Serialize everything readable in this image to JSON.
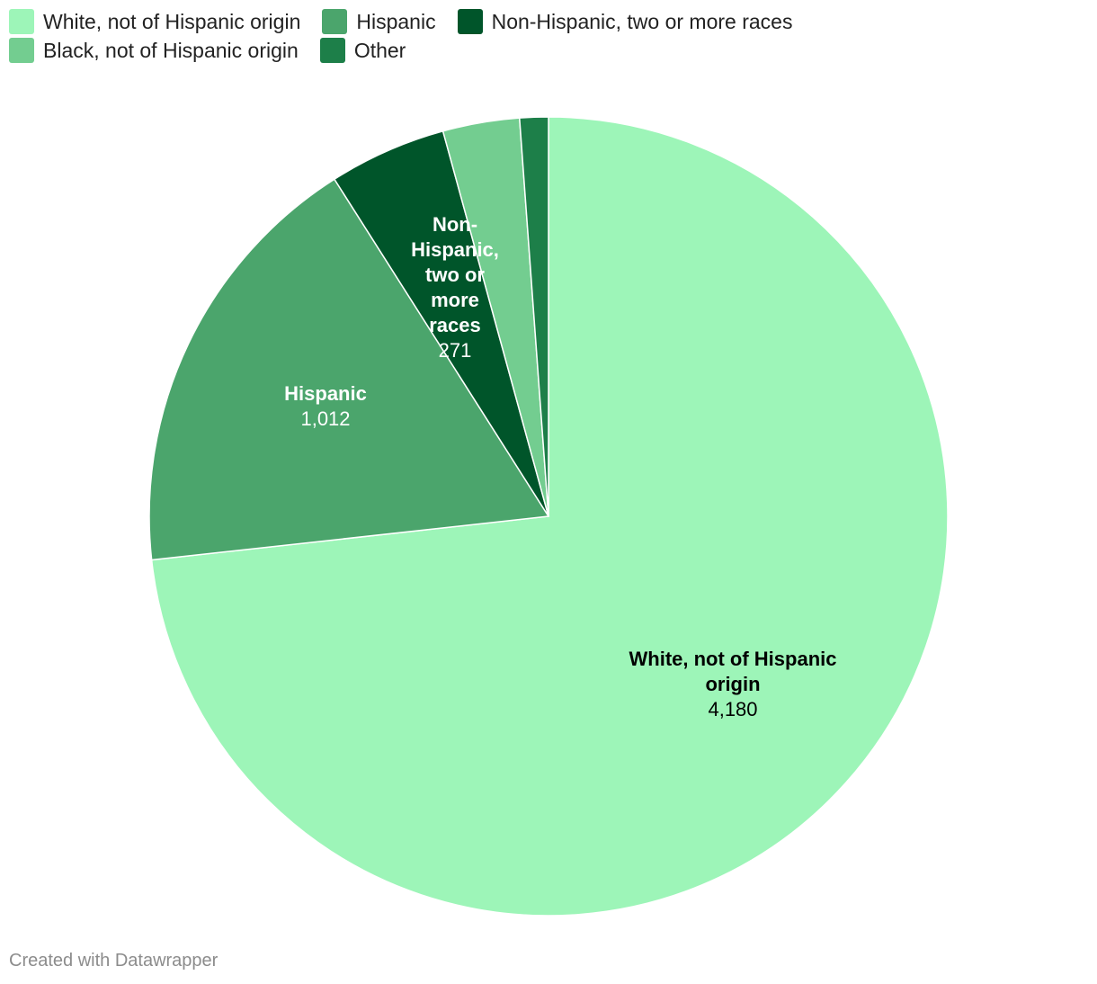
{
  "legend": {
    "rows": [
      [
        "White, not of Hispanic origin",
        "Hispanic",
        "Non-Hispanic, two or more races"
      ],
      [
        "Black, not of Hispanic origin",
        "Other"
      ]
    ]
  },
  "footer": {
    "credit": "Created with Datawrapper"
  },
  "chart_data": {
    "type": "pie",
    "title": "",
    "slices": [
      {
        "label": "White, not of Hispanic origin",
        "value": 4180,
        "display": "4,180",
        "color": "#9df5b8",
        "text_color": "#000000",
        "show_label": true
      },
      {
        "label": "Hispanic",
        "value": 1012,
        "display": "1,012",
        "color": "#4ba56c",
        "text_color": "#ffffff",
        "show_label": true
      },
      {
        "label": "Non-Hispanic, two or more races",
        "value": 271,
        "display": "271",
        "color": "#00552a",
        "text_color": "#ffffff",
        "show_label": true
      },
      {
        "label": "Black, not of Hispanic origin",
        "value": 177,
        "display": "177",
        "color": "#73cd90",
        "text_color": "#000000",
        "show_label": false
      },
      {
        "label": "Other",
        "value": 66,
        "display": "66",
        "color": "#1d7f49",
        "text_color": "#ffffff",
        "show_label": false
      }
    ],
    "start": "12 o'clock",
    "direction": "clockwise",
    "legend_position": "top-left"
  }
}
